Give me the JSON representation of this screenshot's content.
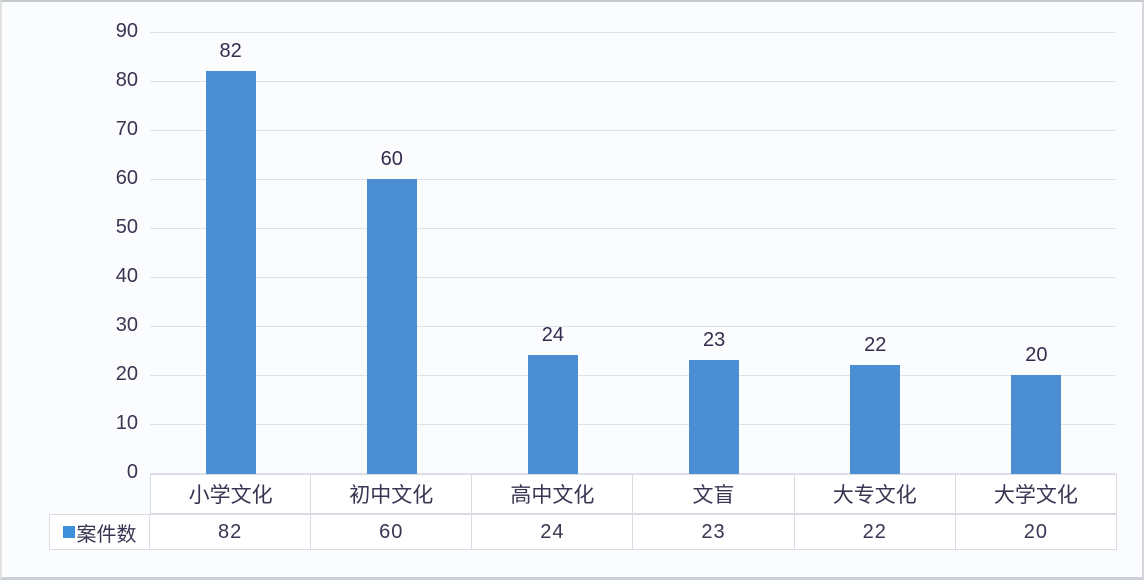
{
  "chart_data": {
    "type": "bar",
    "title": "",
    "xlabel": "",
    "ylabel": "",
    "categories": [
      "小学文化",
      "初中文化",
      "高中文化",
      "文盲",
      "大专文化",
      "大学文化"
    ],
    "series": [
      {
        "name": "案件数",
        "values": [
          82,
          60,
          24,
          23,
          22,
          20
        ]
      }
    ],
    "data_labels": [
      "82",
      "60",
      "24",
      "23",
      "22",
      "20"
    ],
    "ylim": [
      0,
      90
    ],
    "ytick_step": 10,
    "yticks": [
      "0",
      "10",
      "20",
      "30",
      "40",
      "50",
      "60",
      "70",
      "80",
      "90"
    ],
    "grid": true,
    "legend_position": "bottom-left-table",
    "colors": {
      "bar": "#4b8fd2",
      "legend_swatch": "#3f90da",
      "text": "#3b3452",
      "gridline": "#dde1ea",
      "table_border": "#d9dce3",
      "background": "#fbfcfd"
    },
    "table": {
      "legend_label": "案件数",
      "header_cells": [
        "小学文化",
        "初中文化",
        "高中文化",
        "文盲",
        "大专文化",
        "大学文化"
      ],
      "value_cells": [
        "82",
        "60",
        "24",
        "23",
        "22",
        "20"
      ]
    }
  }
}
